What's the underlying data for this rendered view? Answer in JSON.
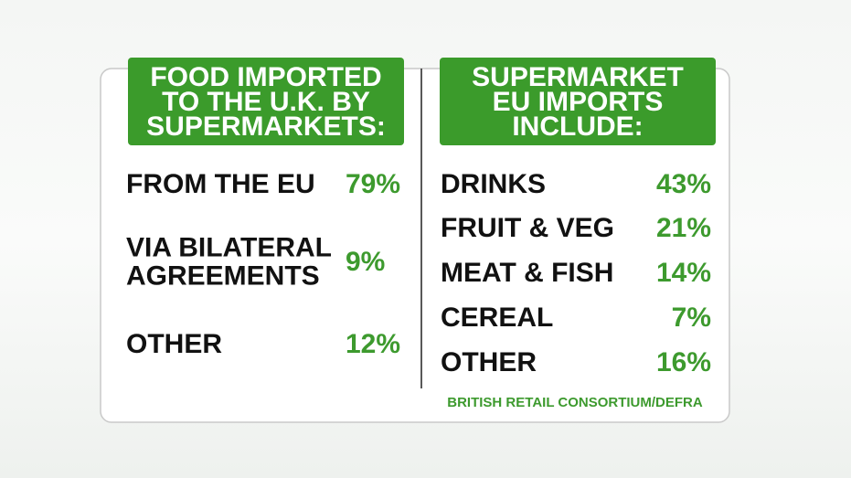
{
  "left_panel": {
    "title": [
      "FOOD IMPORTED",
      "TO THE U.K. BY",
      "SUPERMARKETS:"
    ],
    "rows": [
      {
        "label": [
          "FROM THE EU"
        ],
        "value": "79%"
      },
      {
        "label": [
          "VIA BILATERAL",
          "AGREEMENTS"
        ],
        "value": "9%"
      },
      {
        "label": [
          "OTHER"
        ],
        "value": "12%"
      }
    ]
  },
  "right_panel": {
    "title": [
      "SUPERMARKET",
      "EU IMPORTS",
      "INCLUDE:"
    ],
    "rows": [
      {
        "label": [
          "DRINKS"
        ],
        "value": "43%"
      },
      {
        "label": [
          "FRUIT & VEG"
        ],
        "value": "21%"
      },
      {
        "label": [
          "MEAT & FISH"
        ],
        "value": "14%"
      },
      {
        "label": [
          "CEREAL"
        ],
        "value": "7%"
      },
      {
        "label": [
          "OTHER"
        ],
        "value": "16%"
      }
    ]
  },
  "source": "BRITISH RETAIL CONSORTIUM/DEFRA"
}
